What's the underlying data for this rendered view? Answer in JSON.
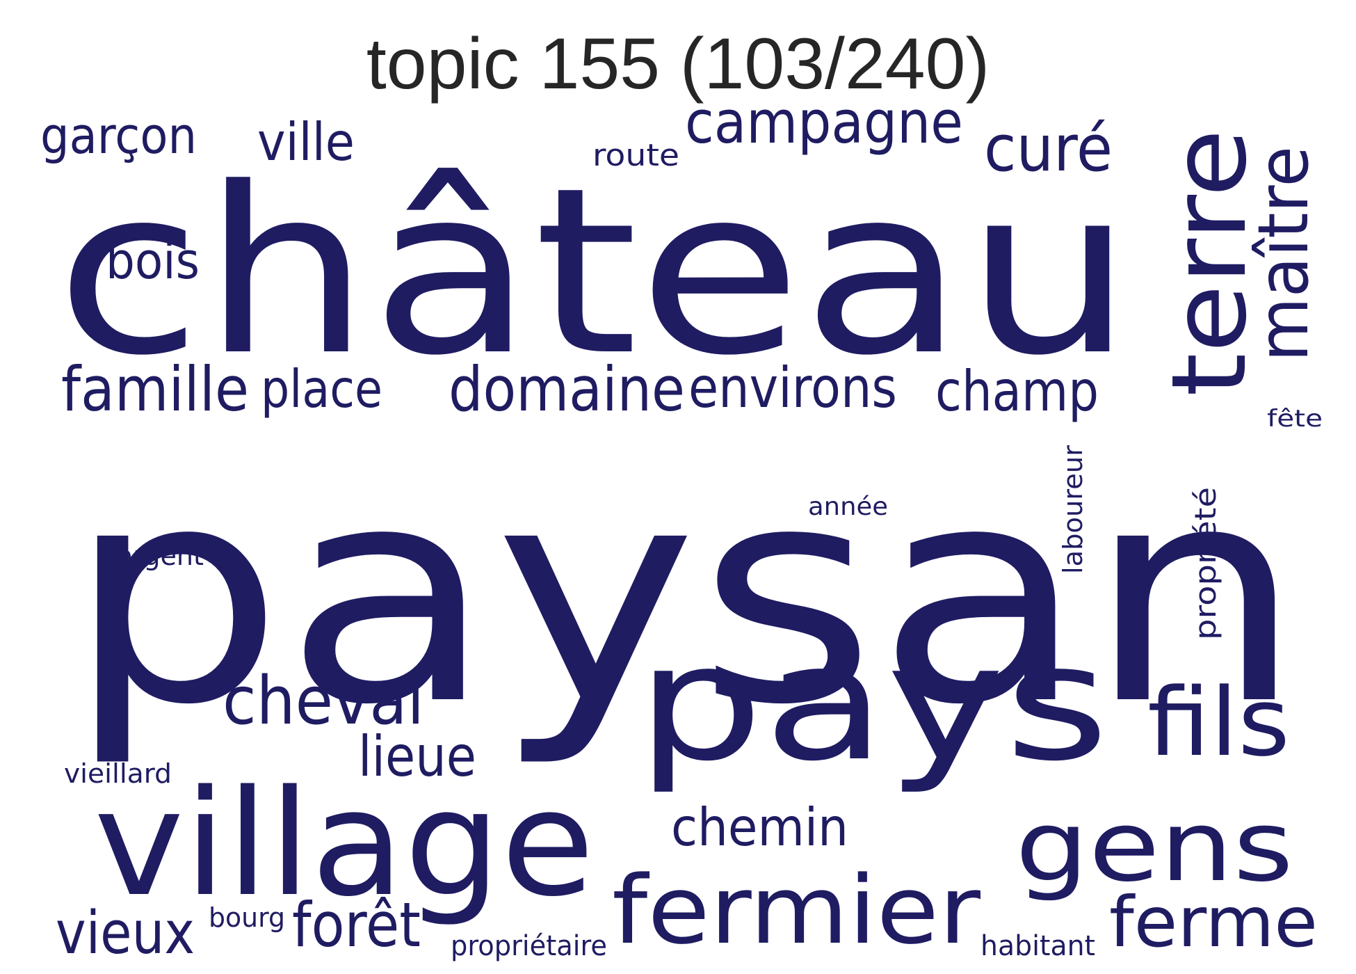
{
  "title": "topic 155 (103/240)",
  "word_color": "#1f1c62",
  "words": [
    {
      "text": "paysan",
      "weight": 1.0
    },
    {
      "text": "château",
      "weight": 0.85
    },
    {
      "text": "pays",
      "weight": 0.6
    },
    {
      "text": "village",
      "weight": 0.5
    },
    {
      "text": "terre",
      "weight": 0.38
    },
    {
      "text": "gens",
      "weight": 0.36
    },
    {
      "text": "fermier",
      "weight": 0.35
    },
    {
      "text": "fils",
      "weight": 0.3
    },
    {
      "text": "maître",
      "weight": 0.24
    },
    {
      "text": "ferme",
      "weight": 0.23
    },
    {
      "text": "cheval",
      "weight": 0.21
    },
    {
      "text": "domaine",
      "weight": 0.2
    },
    {
      "text": "forêt",
      "weight": 0.19
    },
    {
      "text": "famille",
      "weight": 0.19
    },
    {
      "text": "vieux",
      "weight": 0.19
    },
    {
      "text": "campagne",
      "weight": 0.18
    },
    {
      "text": "curé",
      "weight": 0.18
    },
    {
      "text": "environs",
      "weight": 0.17
    },
    {
      "text": "champ",
      "weight": 0.17
    },
    {
      "text": "lieue",
      "weight": 0.17
    },
    {
      "text": "place",
      "weight": 0.16
    },
    {
      "text": "chemin",
      "weight": 0.16
    },
    {
      "text": "ville",
      "weight": 0.15
    },
    {
      "text": "garçon",
      "weight": 0.15
    },
    {
      "text": "bois",
      "weight": 0.15
    },
    {
      "text": "propriété",
      "weight": 0.09
    },
    {
      "text": "laboureur",
      "weight": 0.07
    },
    {
      "text": "propriétaire",
      "weight": 0.07
    },
    {
      "text": "habitant",
      "weight": 0.07
    },
    {
      "text": "route",
      "weight": 0.07
    },
    {
      "text": "vieillard",
      "weight": 0.06
    },
    {
      "text": "argent",
      "weight": 0.06
    },
    {
      "text": "année",
      "weight": 0.06
    },
    {
      "text": "bourg",
      "weight": 0.06
    },
    {
      "text": "fête",
      "weight": 0.05
    }
  ]
}
